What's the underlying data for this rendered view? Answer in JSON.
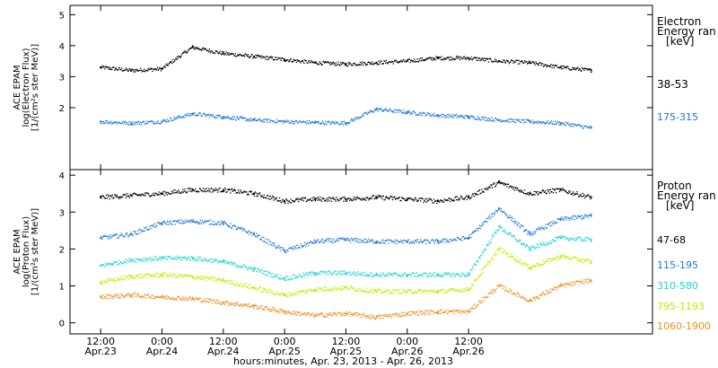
{
  "chart_data": [
    {
      "type": "scatter",
      "panel": "electron",
      "ylabel_lines": [
        "ACE EPAM",
        "log(Electron Flux)",
        "[1/(cm²s ster MeV)]"
      ],
      "ylim": [
        0,
        5.3
      ],
      "yticks": [
        2,
        3,
        4,
        5
      ],
      "legend": {
        "title_lines": [
          "Electron",
          "Energy ran",
          "[keV]"
        ]
      },
      "series": [
        {
          "name": "38-53",
          "color": "#000000",
          "x": [
            0.0,
            0.25,
            0.5,
            0.75,
            1.0,
            1.25,
            1.5,
            1.75,
            2.0,
            2.25,
            2.5,
            2.75,
            3.0,
            3.25,
            3.5,
            3.75,
            4.0
          ],
          "values": [
            3.3,
            3.2,
            3.25,
            3.95,
            3.75,
            3.65,
            3.55,
            3.45,
            3.4,
            3.45,
            3.5,
            3.6,
            3.6,
            3.5,
            3.45,
            3.3,
            3.2
          ]
        },
        {
          "name": "175-315",
          "color": "#1e78d8",
          "x": [
            0.0,
            0.25,
            0.5,
            0.75,
            1.0,
            1.25,
            1.5,
            1.75,
            2.0,
            2.25,
            2.5,
            2.75,
            3.0,
            3.25,
            3.5,
            3.75,
            4.0
          ],
          "values": [
            1.55,
            1.5,
            1.55,
            1.8,
            1.7,
            1.6,
            1.55,
            1.52,
            1.5,
            1.95,
            1.85,
            1.75,
            1.7,
            1.6,
            1.55,
            1.5,
            1.35
          ]
        }
      ]
    },
    {
      "type": "scatter",
      "panel": "proton",
      "ylabel_lines": [
        "ACE EPAM",
        "log(Proton Flux)",
        "[1/(cm²s ster MeV)]"
      ],
      "ylim": [
        -0.3,
        4.15
      ],
      "yticks": [
        0,
        1,
        2,
        3,
        4
      ],
      "legend": {
        "title_lines": [
          "Proton",
          "Energy ran",
          "[keV]"
        ]
      },
      "series": [
        {
          "name": "47-68",
          "color": "#000000",
          "x": [
            0.0,
            0.25,
            0.5,
            0.75,
            1.0,
            1.25,
            1.5,
            1.75,
            2.0,
            2.25,
            2.5,
            2.75,
            3.0,
            3.25,
            3.5,
            3.75,
            4.0
          ],
          "values": [
            3.4,
            3.45,
            3.5,
            3.6,
            3.6,
            3.5,
            3.3,
            3.35,
            3.35,
            3.4,
            3.35,
            3.3,
            3.4,
            3.8,
            3.5,
            3.6,
            3.4
          ]
        },
        {
          "name": "115-195",
          "color": "#1e78d8",
          "x": [
            0.0,
            0.25,
            0.5,
            0.75,
            1.0,
            1.25,
            1.5,
            1.75,
            2.0,
            2.25,
            2.5,
            2.75,
            3.0,
            3.25,
            3.5,
            3.75,
            4.0
          ],
          "values": [
            2.3,
            2.4,
            2.7,
            2.75,
            2.7,
            2.4,
            1.95,
            2.2,
            2.25,
            2.2,
            2.2,
            2.2,
            2.3,
            3.1,
            2.4,
            2.8,
            2.9
          ]
        },
        {
          "name": "310-580",
          "color": "#1fd4d4",
          "x": [
            0.0,
            0.25,
            0.5,
            0.75,
            1.0,
            1.25,
            1.5,
            1.75,
            2.0,
            2.25,
            2.5,
            2.75,
            3.0,
            3.25,
            3.5,
            3.75,
            4.0
          ],
          "values": [
            1.55,
            1.7,
            1.75,
            1.75,
            1.65,
            1.45,
            1.2,
            1.35,
            1.35,
            1.3,
            1.3,
            1.3,
            1.3,
            2.6,
            2.0,
            2.3,
            2.25
          ]
        },
        {
          "name": "795-1193",
          "color": "#c8e800",
          "x": [
            0.0,
            0.25,
            0.5,
            0.75,
            1.0,
            1.25,
            1.5,
            1.75,
            2.0,
            2.25,
            2.5,
            2.75,
            3.0,
            3.25,
            3.5,
            3.75,
            4.0
          ],
          "values": [
            1.1,
            1.25,
            1.3,
            1.25,
            1.15,
            0.95,
            0.75,
            0.9,
            0.95,
            0.85,
            0.85,
            0.85,
            0.9,
            2.0,
            1.5,
            1.8,
            1.65
          ]
        },
        {
          "name": "1060-1900",
          "color": "#f08c1a",
          "x": [
            0.0,
            0.25,
            0.5,
            0.75,
            1.0,
            1.25,
            1.5,
            1.75,
            2.0,
            2.25,
            2.5,
            2.75,
            3.0,
            3.25,
            3.5,
            3.75,
            4.0
          ],
          "values": [
            0.7,
            0.75,
            0.7,
            0.65,
            0.55,
            0.45,
            0.3,
            0.2,
            0.25,
            0.15,
            0.25,
            0.3,
            0.3,
            1.0,
            0.6,
            1.0,
            1.15
          ]
        }
      ]
    }
  ],
  "x_axis": {
    "xlim": [
      -0.25,
      4.5
    ],
    "ticks": [
      {
        "x": 0.0,
        "time": "12:00",
        "date": "Apr.23"
      },
      {
        "x": 0.5,
        "time": "0:00",
        "date": "Apr.24"
      },
      {
        "x": 1.0,
        "time": "12:00",
        "date": "Apr.24"
      },
      {
        "x": 1.5,
        "time": "0:00",
        "date": "Apr.25"
      },
      {
        "x": 2.0,
        "time": "12:00",
        "date": "Apr.25"
      },
      {
        "x": 2.5,
        "time": "0:00",
        "date": "Apr.26"
      },
      {
        "x": 3.0,
        "time": "12:00",
        "date": "Apr.26"
      }
    ],
    "label": "hours:minutes, Apr. 23, 2013 - Apr. 26, 2013"
  }
}
